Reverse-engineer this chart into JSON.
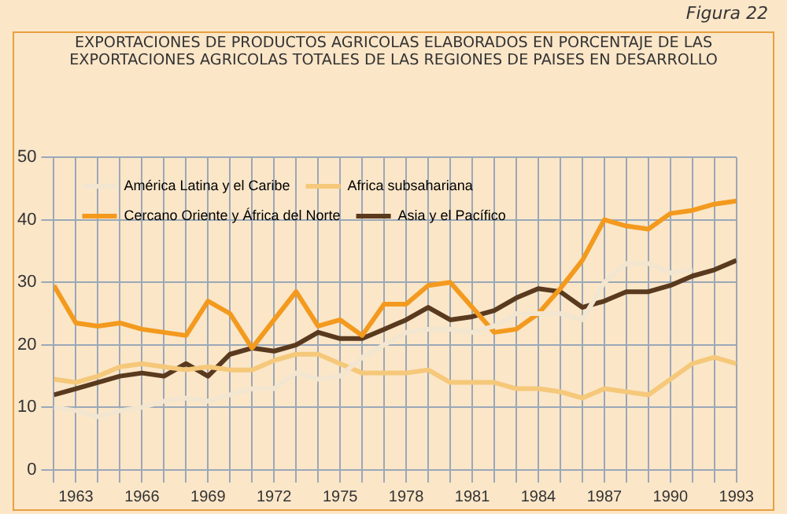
{
  "chart_data": {
    "type": "line",
    "title": "EXPORTACIONES DE PRODUCTOS AGRICOLAS ELABORADOS EN PORCENTAJE DE LAS EXPORTACIONES AGRICOLAS TOTALES DE LAS REGIONES DE PAISES EN DESARROLLO",
    "annotations": [
      "Figura 22"
    ],
    "x": [
      1962,
      1963,
      1964,
      1965,
      1966,
      1967,
      1968,
      1969,
      1970,
      1971,
      1972,
      1973,
      1974,
      1975,
      1976,
      1977,
      1978,
      1979,
      1980,
      1981,
      1982,
      1983,
      1984,
      1985,
      1986,
      1987,
      1988,
      1989,
      1990,
      1991,
      1992,
      1993
    ],
    "series": [
      {
        "name": "América Latina y el Caribe",
        "color": "#f3e6d0",
        "values": [
          10,
          9.5,
          8.5,
          9.5,
          10,
          11,
          11.5,
          11,
          12,
          13,
          13,
          15.5,
          14.5,
          15,
          18,
          20,
          22,
          22.5,
          22.5,
          22,
          23,
          25,
          25,
          25,
          24,
          30,
          33,
          33,
          31.5,
          32,
          null,
          null
        ]
      },
      {
        "name": "Africa subsahariana",
        "color": "#f5c87a",
        "values": [
          14.5,
          14,
          15,
          16.5,
          17,
          16.5,
          16,
          16.5,
          16,
          16,
          17.5,
          18.5,
          18.5,
          17,
          15.5,
          15.5,
          15.5,
          16,
          14,
          14,
          14,
          13,
          13,
          12.5,
          11.5,
          13,
          12.5,
          12,
          14.5,
          17,
          18,
          17
        ]
      },
      {
        "name": "Cercano Oriente y África del Norte",
        "color": "#f39a1e",
        "values": [
          29.5,
          23.5,
          23,
          23.5,
          22.5,
          22,
          21.5,
          27,
          25,
          19.5,
          24,
          28.5,
          23,
          24,
          21.5,
          26.5,
          26.5,
          29.5,
          30,
          26,
          22,
          22.5,
          25,
          29,
          33.5,
          40,
          39,
          38.5,
          41,
          41.5,
          42.5,
          43
        ]
      },
      {
        "name": "Asia y el Pacífico",
        "color": "#5a3a1e",
        "values": [
          12,
          13,
          14,
          15,
          15.5,
          15,
          17,
          15,
          18.5,
          19.5,
          19,
          20,
          22,
          21,
          21,
          22.5,
          24,
          26,
          24,
          24.5,
          25.5,
          27.5,
          29,
          28.5,
          26,
          27,
          28.5,
          28.5,
          29.5,
          31,
          32,
          33.5
        ]
      }
    ],
    "xlim": [
      1962,
      1993
    ],
    "xticks": [
      {
        "value": 1962,
        "label": null
      },
      1963,
      {
        "value": 1964,
        "label": null
      },
      {
        "value": 1965,
        "label": null
      },
      1966,
      {
        "value": 1967,
        "label": null
      },
      {
        "value": 1968,
        "label": null
      },
      1969,
      {
        "value": 1970,
        "label": null
      },
      {
        "value": 1971,
        "label": null
      },
      1972,
      {
        "value": 1973,
        "label": null
      },
      {
        "value": 1974,
        "label": null
      },
      1975,
      {
        "value": 1976,
        "label": null
      },
      {
        "value": 1977,
        "label": null
      },
      1978,
      {
        "value": 1979,
        "label": null
      },
      {
        "value": 1980,
        "label": null
      },
      1981,
      {
        "value": 1982,
        "label": null
      },
      {
        "value": 1983,
        "label": null
      },
      1984,
      {
        "value": 1985,
        "label": null
      },
      {
        "value": 1986,
        "label": null
      },
      1987,
      {
        "value": 1988,
        "label": null
      },
      {
        "value": 1989,
        "label": null
      },
      1990,
      {
        "value": 1991,
        "label": null
      },
      {
        "value": 1992,
        "label": null
      },
      1993
    ],
    "ylim": [
      0,
      50
    ],
    "yticks": [
      0,
      10,
      20,
      30,
      40,
      50
    ],
    "grid": true,
    "legend": "top left",
    "marker": "none",
    "line_style": "solid"
  }
}
